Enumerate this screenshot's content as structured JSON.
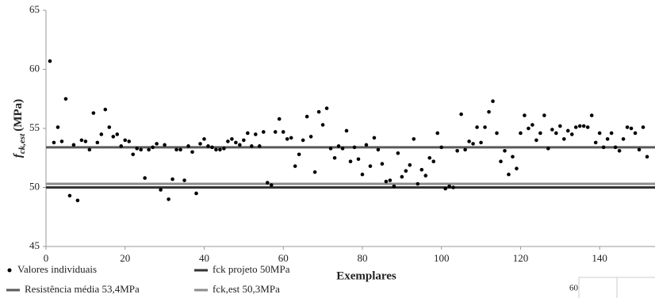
{
  "chart_data": {
    "type": "scatter",
    "ylabel": {
      "symbol": "f",
      "subscript": "ck,est",
      "unit": "(MPa)"
    },
    "xlabel": "Exemplares",
    "xlim": [
      0,
      154
    ],
    "xticks": [
      0,
      20,
      40,
      60,
      80,
      100,
      120,
      140
    ],
    "ylim": [
      45,
      65
    ],
    "yticks": [
      45,
      50,
      55,
      60,
      65
    ],
    "series": [
      {
        "name": "Valores individuais",
        "color": "#000000",
        "x": [
          1,
          2,
          3,
          4,
          5,
          6,
          7,
          8,
          9,
          10,
          11,
          12,
          13,
          14,
          15,
          16,
          17,
          18,
          19,
          20,
          21,
          22,
          23,
          24,
          25,
          26,
          27,
          28,
          29,
          30,
          31,
          32,
          33,
          34,
          35,
          36,
          37,
          38,
          39,
          40,
          41,
          42,
          43,
          44,
          45,
          46,
          47,
          48,
          49,
          50,
          51,
          52,
          53,
          54,
          55,
          56,
          57,
          58,
          59,
          60,
          61,
          62,
          63,
          64,
          65,
          66,
          67,
          68,
          69,
          70,
          71,
          72,
          73,
          74,
          75,
          76,
          77,
          78,
          79,
          80,
          81,
          82,
          83,
          84,
          85,
          86,
          87,
          88,
          89,
          90,
          91,
          92,
          93,
          94,
          95,
          96,
          97,
          98,
          99,
          100,
          101,
          102,
          103,
          104,
          105,
          106,
          107,
          108,
          109,
          110,
          111,
          112,
          113,
          114,
          115,
          116,
          117,
          118,
          119,
          120,
          121,
          122,
          123,
          124,
          125,
          126,
          127,
          128,
          129,
          130,
          131,
          132,
          133,
          134,
          135,
          136,
          137,
          138,
          139,
          140,
          141,
          142,
          143,
          144,
          145,
          146,
          147,
          148,
          149,
          150,
          151,
          152
        ],
        "values": [
          60.7,
          53.8,
          55.1,
          53.9,
          57.5,
          49.3,
          53.6,
          48.9,
          54.0,
          53.9,
          53.2,
          56.3,
          53.8,
          54.5,
          56.6,
          55.1,
          54.3,
          54.5,
          53.5,
          54.0,
          53.9,
          52.8,
          53.3,
          53.2,
          50.8,
          53.2,
          53.4,
          53.7,
          49.8,
          53.6,
          49.0,
          50.7,
          53.2,
          53.2,
          50.6,
          53.5,
          53.0,
          49.5,
          53.7,
          54.1,
          53.5,
          53.4,
          53.2,
          53.2,
          53.3,
          53.9,
          54.1,
          53.8,
          53.6,
          54.0,
          54.6,
          53.5,
          54.5,
          53.5,
          54.7,
          50.4,
          50.2,
          54.7,
          55.8,
          54.7,
          54.1,
          54.2,
          51.8,
          52.8,
          54.0,
          56.0,
          54.3,
          51.3,
          56.4,
          55.3,
          56.7,
          53.3,
          52.5,
          53.5,
          53.3,
          54.8,
          52.2,
          53.4,
          52.4,
          51.1,
          53.6,
          51.8,
          54.2,
          53.2,
          52.0,
          50.5,
          50.6,
          50.1,
          52.9,
          50.9,
          51.4,
          51.9,
          54.1,
          50.3,
          51.5,
          51.0,
          52.5,
          52.2,
          54.6,
          53.4,
          49.9,
          50.1,
          50.0,
          53.1,
          56.2,
          53.2,
          53.9,
          53.7,
          55.1,
          53.8,
          55.1,
          56.4,
          57.3,
          54.6,
          52.2,
          53.1,
          51.1,
          52.6,
          51.6,
          54.6,
          56.1,
          55.0,
          55.3,
          54.0,
          54.6,
          56.1,
          53.3,
          54.9,
          54.6,
          55.2,
          54.1,
          54.8,
          54.5,
          55.1,
          55.2,
          55.2,
          55.1,
          56.1,
          53.8,
          54.6,
          53.4,
          54.1,
          54.6,
          53.4,
          53.1,
          54.1,
          55.1,
          55.0,
          54.6,
          53.2,
          55.1,
          52.6
        ]
      }
    ],
    "reference_lines": [
      {
        "name": "fck projeto 50MPa",
        "value": 50,
        "color": "#333333"
      },
      {
        "name": "Resistência média 53,4MPa",
        "value": 53.4,
        "color": "#5a5a5a"
      },
      {
        "name": "fck,est 50,3MPa",
        "value": 50.3,
        "color": "#8c8c8c"
      }
    ]
  },
  "fragment_label": "60"
}
